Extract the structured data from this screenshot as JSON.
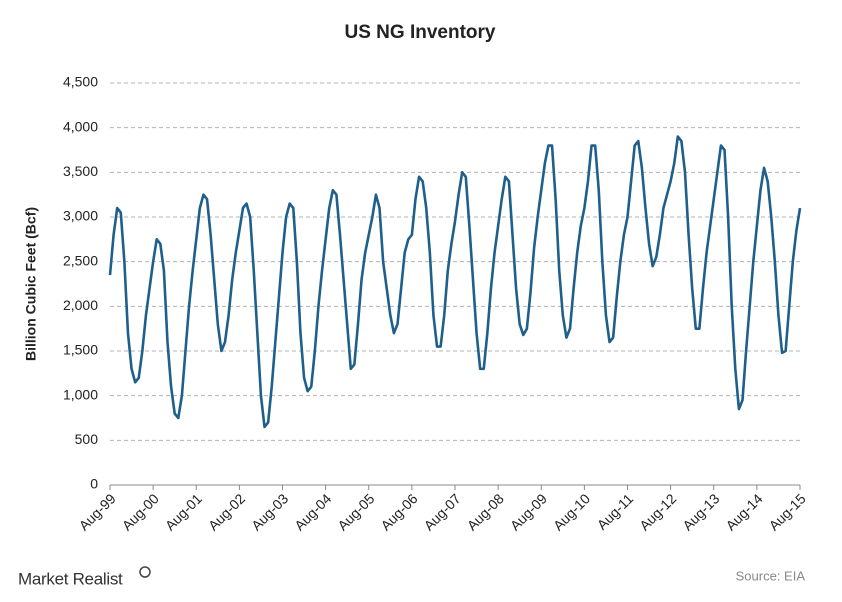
{
  "chart_data": {
    "type": "line",
    "title": "US NG Inventory",
    "ylabel": "Billion Cubic Feet (Bcf)",
    "source": "Source: EIA",
    "brand": "Market Realist",
    "grid": true,
    "ylim": [
      0,
      4500
    ],
    "yticks": [
      0,
      500,
      {
        "value": 1000,
        "label": "1,000"
      },
      {
        "value": 1500,
        "label": "1,500"
      },
      {
        "value": 2000,
        "label": "2,000"
      },
      {
        "value": 2500,
        "label": "2,500"
      },
      {
        "value": 3000,
        "label": "3,000"
      },
      {
        "value": 3500,
        "label": "3,500"
      },
      {
        "value": 4000,
        "label": "4,000"
      },
      {
        "value": 4500,
        "label": "4,500"
      }
    ],
    "categories": [
      "Aug-99",
      null,
      null,
      null,
      null,
      null,
      null,
      null,
      null,
      null,
      null,
      null,
      "Aug-00",
      null,
      null,
      null,
      null,
      null,
      null,
      null,
      null,
      null,
      null,
      null,
      "Aug-01",
      null,
      null,
      null,
      null,
      null,
      null,
      null,
      null,
      null,
      null,
      null,
      "Aug-02",
      null,
      null,
      null,
      null,
      null,
      null,
      null,
      null,
      null,
      null,
      null,
      "Aug-03",
      null,
      null,
      null,
      null,
      null,
      null,
      null,
      null,
      null,
      null,
      null,
      "Aug-04",
      null,
      null,
      null,
      null,
      null,
      null,
      null,
      null,
      null,
      null,
      null,
      "Aug-05",
      null,
      null,
      null,
      null,
      null,
      null,
      null,
      null,
      null,
      null,
      null,
      "Aug-06",
      null,
      null,
      null,
      null,
      null,
      null,
      null,
      null,
      null,
      null,
      null,
      "Aug-07",
      null,
      null,
      null,
      null,
      null,
      null,
      null,
      null,
      null,
      null,
      null,
      "Aug-08",
      null,
      null,
      null,
      null,
      null,
      null,
      null,
      null,
      null,
      null,
      null,
      "Aug-09",
      null,
      null,
      null,
      null,
      null,
      null,
      null,
      null,
      null,
      null,
      null,
      "Aug-10",
      null,
      null,
      null,
      null,
      null,
      null,
      null,
      null,
      null,
      null,
      null,
      "Aug-11",
      null,
      null,
      null,
      null,
      null,
      null,
      null,
      null,
      null,
      null,
      null,
      "Aug-12",
      null,
      null,
      null,
      null,
      null,
      null,
      null,
      null,
      null,
      null,
      null,
      "Aug-13",
      null,
      null,
      null,
      null,
      null,
      null,
      null,
      null,
      null,
      null,
      null,
      "Aug-14",
      null,
      null,
      null,
      null,
      null,
      null,
      null,
      null,
      null,
      null,
      null,
      "Aug-15"
    ],
    "series": [
      {
        "name": "US NG Inventory",
        "color": "#1f5f8b",
        "values": [
          2350,
          2800,
          3100,
          3050,
          2500,
          1700,
          1300,
          1150,
          1200,
          1500,
          1900,
          2200,
          2500,
          2750,
          2700,
          2400,
          1600,
          1100,
          800,
          750,
          1000,
          1500,
          2000,
          2400,
          2750,
          3100,
          3250,
          3200,
          2800,
          2300,
          1800,
          1500,
          1600,
          1900,
          2300,
          2600,
          2850,
          3100,
          3150,
          3000,
          2400,
          1700,
          1000,
          650,
          700,
          1100,
          1600,
          2100,
          2600,
          3000,
          3150,
          3100,
          2500,
          1700,
          1200,
          1050,
          1100,
          1500,
          2000,
          2400,
          2750,
          3100,
          3300,
          3250,
          2800,
          2300,
          1800,
          1300,
          1350,
          1800,
          2300,
          2600,
          2800,
          3000,
          3250,
          3100,
          2500,
          2200,
          1900,
          1700,
          1800,
          2200,
          2600,
          2750,
          2800,
          3200,
          3450,
          3400,
          3100,
          2600,
          1900,
          1550,
          1550,
          1900,
          2400,
          2700,
          2950,
          3250,
          3500,
          3450,
          2900,
          2300,
          1700,
          1300,
          1300,
          1700,
          2200,
          2600,
          2900,
          3200,
          3450,
          3400,
          2800,
          2200,
          1800,
          1680,
          1750,
          2150,
          2650,
          3000,
          3300,
          3600,
          3800,
          3800,
          3200,
          2400,
          1900,
          1650,
          1750,
          2200,
          2600,
          2900,
          3100,
          3400,
          3800,
          3800,
          3300,
          2500,
          1900,
          1600,
          1650,
          2100,
          2500,
          2800,
          3000,
          3400,
          3800,
          3850,
          3550,
          3100,
          2700,
          2450,
          2550,
          2800,
          3100,
          3250,
          3400,
          3600,
          3900,
          3850,
          3500,
          2800,
          2200,
          1750,
          1750,
          2200,
          2600,
          2900,
          3200,
          3500,
          3800,
          3750,
          3000,
          2000,
          1300,
          850,
          950,
          1500,
          2000,
          2500,
          2900,
          3300,
          3550,
          3400,
          3000,
          2500,
          1900,
          1480,
          1500,
          2000,
          2500,
          2850,
          3100
        ]
      }
    ]
  }
}
